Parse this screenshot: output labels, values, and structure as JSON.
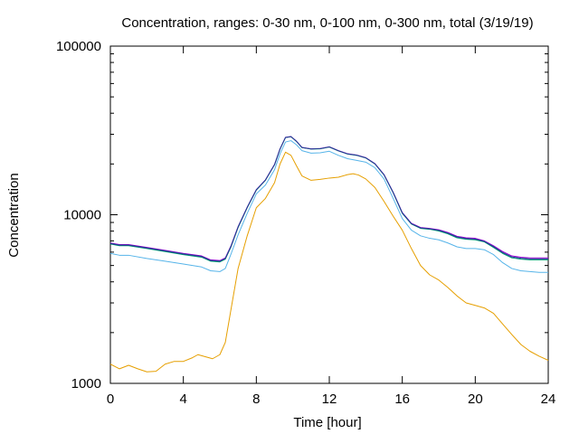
{
  "chart_data": {
    "type": "line",
    "title": "Concentration, ranges: 0-30 nm, 0-100 nm, 0-300 nm, total (3/19/19)",
    "xlabel": "Time [hour]",
    "ylabel": "Concentration",
    "xlim": [
      0,
      24
    ],
    "ylim": [
      1000,
      100000
    ],
    "yscale": "log",
    "grid": false,
    "legend": "none",
    "x_ticks": [
      0,
      4,
      8,
      12,
      16,
      20,
      24
    ],
    "x_tick_labels": [
      "0",
      "4",
      "8",
      "12",
      "16",
      "20",
      "24"
    ],
    "y_ticks": [
      1000,
      10000,
      100000
    ],
    "y_tick_labels": [
      "1000",
      "10000",
      "100000"
    ],
    "series": [
      {
        "color": "#e69f00",
        "points": [
          [
            0,
            1300
          ],
          [
            0.5,
            1220
          ],
          [
            1,
            1280
          ],
          [
            1.5,
            1220
          ],
          [
            2,
            1170
          ],
          [
            2.5,
            1180
          ],
          [
            3,
            1300
          ],
          [
            3.5,
            1350
          ],
          [
            4,
            1350
          ],
          [
            4.5,
            1420
          ],
          [
            4.8,
            1480
          ],
          [
            5.2,
            1440
          ],
          [
            5.6,
            1400
          ],
          [
            6,
            1480
          ],
          [
            6.3,
            1750
          ],
          [
            6.6,
            2700
          ],
          [
            7,
            4800
          ],
          [
            7.5,
            7500
          ],
          [
            8,
            11000
          ],
          [
            8.5,
            12500
          ],
          [
            9,
            15500
          ],
          [
            9.3,
            20000
          ],
          [
            9.6,
            23500
          ],
          [
            9.9,
            22500
          ],
          [
            10.2,
            19500
          ],
          [
            10.5,
            17000
          ],
          [
            11,
            16000
          ],
          [
            11.5,
            16200
          ],
          [
            12,
            16500
          ],
          [
            12.5,
            16700
          ],
          [
            13,
            17300
          ],
          [
            13.3,
            17500
          ],
          [
            13.6,
            17200
          ],
          [
            14,
            16300
          ],
          [
            14.5,
            14500
          ],
          [
            15,
            12000
          ],
          [
            15.5,
            9800
          ],
          [
            16,
            8100
          ],
          [
            16.5,
            6300
          ],
          [
            17,
            5000
          ],
          [
            17.5,
            4400
          ],
          [
            18,
            4100
          ],
          [
            18.5,
            3700
          ],
          [
            19,
            3300
          ],
          [
            19.5,
            3000
          ],
          [
            20,
            2900
          ],
          [
            20.5,
            2800
          ],
          [
            21,
            2600
          ],
          [
            21.5,
            2250
          ],
          [
            22,
            1950
          ],
          [
            22.5,
            1700
          ],
          [
            23,
            1550
          ],
          [
            23.5,
            1450
          ],
          [
            24,
            1370
          ]
        ]
      },
      {
        "color": "#56b4e9",
        "points": [
          [
            0,
            5900
          ],
          [
            0.5,
            5750
          ],
          [
            1,
            5750
          ],
          [
            2,
            5500
          ],
          [
            3,
            5300
          ],
          [
            4,
            5100
          ],
          [
            5,
            4900
          ],
          [
            5.5,
            4650
          ],
          [
            6,
            4600
          ],
          [
            6.3,
            4800
          ],
          [
            6.6,
            5800
          ],
          [
            7,
            7600
          ],
          [
            7.5,
            10200
          ],
          [
            8,
            13300
          ],
          [
            8.5,
            15000
          ],
          [
            9,
            18500
          ],
          [
            9.3,
            23000
          ],
          [
            9.6,
            27000
          ],
          [
            9.9,
            27500
          ],
          [
            10.2,
            26000
          ],
          [
            10.5,
            24000
          ],
          [
            11,
            23200
          ],
          [
            11.5,
            23300
          ],
          [
            12,
            23800
          ],
          [
            12.5,
            22500
          ],
          [
            13,
            21500
          ],
          [
            13.5,
            21000
          ],
          [
            14,
            20500
          ],
          [
            14.5,
            19000
          ],
          [
            15,
            16300
          ],
          [
            15.5,
            12500
          ],
          [
            16,
            9500
          ],
          [
            16.5,
            8100
          ],
          [
            17,
            7500
          ],
          [
            17.5,
            7250
          ],
          [
            18,
            7100
          ],
          [
            18.5,
            6800
          ],
          [
            19,
            6450
          ],
          [
            19.5,
            6300
          ],
          [
            20,
            6300
          ],
          [
            20.5,
            6200
          ],
          [
            21,
            5800
          ],
          [
            21.5,
            5200
          ],
          [
            22,
            4800
          ],
          [
            22.5,
            4650
          ],
          [
            23,
            4600
          ],
          [
            23.5,
            4550
          ],
          [
            24,
            4550
          ]
        ]
      },
      {
        "color": "#009e73",
        "points": [
          [
            0,
            6700
          ],
          [
            0.5,
            6550
          ],
          [
            1,
            6550
          ],
          [
            2,
            6300
          ],
          [
            3,
            6050
          ],
          [
            4,
            5800
          ],
          [
            5,
            5600
          ],
          [
            5.5,
            5300
          ],
          [
            6,
            5250
          ],
          [
            6.3,
            5450
          ],
          [
            6.6,
            6400
          ],
          [
            7,
            8400
          ],
          [
            7.5,
            11000
          ],
          [
            8,
            14000
          ],
          [
            8.5,
            16000
          ],
          [
            9,
            19800
          ],
          [
            9.3,
            24500
          ],
          [
            9.6,
            28700
          ],
          [
            9.9,
            29000
          ],
          [
            10.2,
            27200
          ],
          [
            10.5,
            25000
          ],
          [
            11,
            24500
          ],
          [
            11.5,
            24600
          ],
          [
            12,
            25200
          ],
          [
            12.5,
            23900
          ],
          [
            13,
            22900
          ],
          [
            13.5,
            22500
          ],
          [
            14,
            21700
          ],
          [
            14.5,
            20000
          ],
          [
            15,
            17200
          ],
          [
            15.5,
            13500
          ],
          [
            16,
            10200
          ],
          [
            16.5,
            8800
          ],
          [
            17,
            8300
          ],
          [
            17.5,
            8200
          ],
          [
            18,
            8000
          ],
          [
            18.5,
            7700
          ],
          [
            19,
            7300
          ],
          [
            19.5,
            7150
          ],
          [
            20,
            7100
          ],
          [
            20.5,
            6900
          ],
          [
            21,
            6400
          ],
          [
            21.5,
            5900
          ],
          [
            22,
            5550
          ],
          [
            22.5,
            5450
          ],
          [
            23,
            5400
          ],
          [
            23.5,
            5400
          ],
          [
            24,
            5400
          ]
        ]
      },
      {
        "color": "#9400d3",
        "points": [
          [
            0,
            6800
          ],
          [
            0.5,
            6650
          ],
          [
            1,
            6650
          ],
          [
            2,
            6400
          ],
          [
            3,
            6150
          ],
          [
            4,
            5900
          ],
          [
            5,
            5700
          ],
          [
            5.5,
            5400
          ],
          [
            6,
            5350
          ],
          [
            6.3,
            5550
          ],
          [
            6.6,
            6500
          ],
          [
            7,
            8500
          ],
          [
            7.5,
            11100
          ],
          [
            8,
            14100
          ],
          [
            8.5,
            16100
          ],
          [
            9,
            19900
          ],
          [
            9.3,
            24600
          ],
          [
            9.6,
            28800
          ],
          [
            9.9,
            29100
          ],
          [
            10.2,
            27300
          ],
          [
            10.5,
            25100
          ],
          [
            11,
            24600
          ],
          [
            11.5,
            24700
          ],
          [
            12,
            25300
          ],
          [
            12.5,
            24000
          ],
          [
            13,
            23000
          ],
          [
            13.5,
            22600
          ],
          [
            14,
            21800
          ],
          [
            14.5,
            20100
          ],
          [
            15,
            17300
          ],
          [
            15.5,
            13600
          ],
          [
            16,
            10300
          ],
          [
            16.5,
            8900
          ],
          [
            17,
            8400
          ],
          [
            17.5,
            8300
          ],
          [
            18,
            8150
          ],
          [
            18.5,
            7850
          ],
          [
            19,
            7450
          ],
          [
            19.5,
            7300
          ],
          [
            20,
            7250
          ],
          [
            20.5,
            7000
          ],
          [
            21,
            6550
          ],
          [
            21.5,
            6050
          ],
          [
            22,
            5700
          ],
          [
            22.5,
            5600
          ],
          [
            23,
            5550
          ],
          [
            23.5,
            5550
          ],
          [
            24,
            5550
          ]
        ]
      },
      {
        "color": "#1f3f8f",
        "points": [
          [
            0,
            6750
          ],
          [
            0.5,
            6600
          ],
          [
            1,
            6600
          ],
          [
            2,
            6350
          ],
          [
            3,
            6100
          ],
          [
            4,
            5850
          ],
          [
            5,
            5650
          ],
          [
            5.5,
            5350
          ],
          [
            6,
            5300
          ],
          [
            6.3,
            5500
          ],
          [
            6.6,
            6450
          ],
          [
            7,
            8450
          ],
          [
            7.5,
            11050
          ],
          [
            8,
            14050
          ],
          [
            8.5,
            16050
          ],
          [
            9,
            19850
          ],
          [
            9.3,
            24550
          ],
          [
            9.6,
            28750
          ],
          [
            9.9,
            29050
          ],
          [
            10.2,
            27250
          ],
          [
            10.5,
            25050
          ],
          [
            11,
            24550
          ],
          [
            11.5,
            24650
          ],
          [
            12,
            25250
          ],
          [
            12.5,
            23950
          ],
          [
            13,
            22950
          ],
          [
            13.5,
            22550
          ],
          [
            14,
            21750
          ],
          [
            14.5,
            20050
          ],
          [
            15,
            17250
          ],
          [
            15.5,
            13550
          ],
          [
            16,
            10250
          ],
          [
            16.5,
            8850
          ],
          [
            17,
            8350
          ],
          [
            17.5,
            8250
          ],
          [
            18,
            8080
          ],
          [
            18.5,
            7780
          ],
          [
            19,
            7380
          ],
          [
            19.5,
            7220
          ],
          [
            20,
            7170
          ],
          [
            20.5,
            6950
          ],
          [
            21,
            6470
          ],
          [
            21.5,
            5970
          ],
          [
            22,
            5620
          ],
          [
            22.5,
            5520
          ],
          [
            23,
            5470
          ],
          [
            23.5,
            5470
          ],
          [
            24,
            5470
          ]
        ]
      }
    ]
  }
}
